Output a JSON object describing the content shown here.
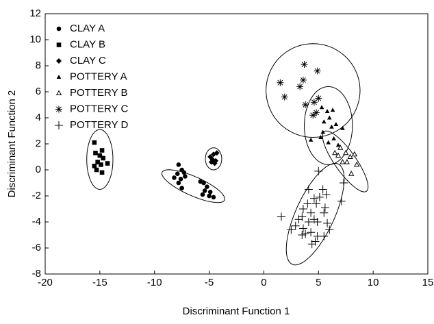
{
  "chart_data": {
    "type": "scatter",
    "xlabel": "Discriminant Function 1",
    "ylabel": "Discriminant Function 2",
    "xlim": [
      -20,
      15
    ],
    "ylim": [
      -8,
      12
    ],
    "xticks": [
      -20,
      -15,
      -10,
      -5,
      0,
      5,
      10,
      15
    ],
    "yticks": [
      -8,
      -6,
      -4,
      -2,
      0,
      2,
      4,
      6,
      8,
      10,
      12
    ],
    "legend": "upper left",
    "series": [
      {
        "name": "CLAY A",
        "color": "#000000",
        "marker": "circle",
        "x": [
          -7.8,
          -7.5,
          -7.9,
          -7.3,
          -7.6,
          -7.2,
          -8.2,
          -7.5,
          -7.8,
          -5.8,
          -5.5,
          -5.2,
          -5.4,
          -4.9,
          -5.0,
          -4.6,
          -5.6
        ],
        "values": [
          0.4,
          0,
          -0.3,
          -0.2,
          -0.7,
          -0.5,
          -0.6,
          -1.4,
          -1.0,
          -0.9,
          -1.0,
          -1.3,
          -1.6,
          -1.7,
          -2.0,
          -2.1,
          -1.9
        ],
        "ellipse": {
          "cx": -6.45,
          "cy": -1.25,
          "a": 3.05,
          "b": 0.75,
          "angle": -20
        }
      },
      {
        "name": "CLAY B",
        "color": "#000000",
        "marker": "square",
        "x": [
          -15.5,
          -15.4,
          -15.0,
          -14.8,
          -14.7,
          -14.3,
          -15.5,
          -15.3,
          -14.8,
          -15.2,
          -14.9
        ],
        "values": [
          2.1,
          1.3,
          1.1,
          1.5,
          0.9,
          0.5,
          0.3,
          0,
          -0.2,
          0.6,
          0.4
        ],
        "ellipse": {
          "cx": -15.0,
          "cy": 0.8,
          "a": 1.2,
          "b": 2.3,
          "angle": 0
        }
      },
      {
        "name": "CLAY C",
        "color": "#000000",
        "marker": "diamond",
        "x": [
          -4.9,
          -4.6,
          -4.3,
          -4.7,
          -4.4,
          -4.8,
          -4.5
        ],
        "values": [
          1.0,
          1.2,
          1.3,
          0.8,
          0.7,
          0.6,
          0.5
        ],
        "ellipse": {
          "cx": -4.6,
          "cy": 0.85,
          "a": 0.75,
          "b": 0.85,
          "angle": 0
        }
      },
      {
        "name": "POTTERY A",
        "color": "#000000",
        "marker": "triangle",
        "x": [
          5.3,
          5.8,
          6.3,
          6.0,
          5.5,
          6.6,
          6.2,
          7.2,
          5.4,
          5.2,
          6.4,
          4.3,
          5.9,
          6.8
        ],
        "values": [
          4.8,
          4.5,
          4.6,
          4.0,
          3.7,
          3.5,
          3.3,
          3.2,
          2.9,
          2.5,
          2.4,
          2.3,
          2.1,
          1.9
        ],
        "ellipse": {
          "cx": 5.9,
          "cy": 3.4,
          "a": 2.2,
          "b": 3.0,
          "angle": 0
        }
      },
      {
        "name": "POTTERY B",
        "color": "#000000",
        "marker": "triangle-open",
        "x": [
          7.5,
          8.3,
          6.8,
          7.9,
          7.2,
          7.6,
          8.5,
          6.5,
          7.0,
          8.0
        ],
        "values": [
          1.3,
          1.2,
          1.1,
          1.0,
          0.6,
          0.6,
          0.4,
          1.3,
          1.7,
          -0.3
        ],
        "ellipse": {
          "cx": 7.45,
          "cy": 0.65,
          "a": 3.0,
          "b": 0.9,
          "angle": -49
        }
      },
      {
        "name": "POTTERY C",
        "color": "#000000",
        "marker": "asterisk",
        "x": [
          3.7,
          4.9,
          1.5,
          3.3,
          3.6,
          1.9,
          5.0,
          4.6,
          3.8,
          4.5,
          4.8
        ],
        "values": [
          8.1,
          7.6,
          6.7,
          6.4,
          6.9,
          5.6,
          5.5,
          5.2,
          5.0,
          4.2,
          4.4
        ],
        "ellipse": {
          "cx": 4.5,
          "cy": 6.1,
          "a": 4.3,
          "b": 3.6,
          "angle": 0
        }
      },
      {
        "name": "POTTERY D",
        "color": "#000000",
        "marker": "plus",
        "x": [
          5.0,
          7.3,
          4.1,
          5.4,
          5.7,
          4.6,
          5.1,
          7.1,
          4.0,
          4.8,
          5.6,
          3.6,
          1.6,
          4.3,
          5.5,
          3.5,
          4.6,
          3.2,
          4.1,
          5.8,
          2.9,
          4.9,
          3.6,
          2.5,
          4.3,
          3.8,
          4.9,
          5.5,
          4.7,
          4.4,
          3.5,
          6.0
        ],
        "values": [
          -0.1,
          -1.0,
          -1.5,
          -1.5,
          -1.9,
          -2.2,
          -2.1,
          -2.4,
          -2.6,
          -2.6,
          -2.9,
          -3.0,
          -3.6,
          -3.3,
          -3.3,
          -3.6,
          -3.8,
          -3.8,
          -4.0,
          -4.1,
          -4.3,
          -4.0,
          -4.5,
          -4.6,
          -4.8,
          -4.9,
          -5.1,
          -5.1,
          -5.5,
          -5.7,
          -5.0,
          -4.6
        ],
        "ellipse": {
          "cx": 4.7,
          "cy": -3.4,
          "a": 4.4,
          "b": 1.7,
          "angle": 60
        }
      }
    ]
  }
}
